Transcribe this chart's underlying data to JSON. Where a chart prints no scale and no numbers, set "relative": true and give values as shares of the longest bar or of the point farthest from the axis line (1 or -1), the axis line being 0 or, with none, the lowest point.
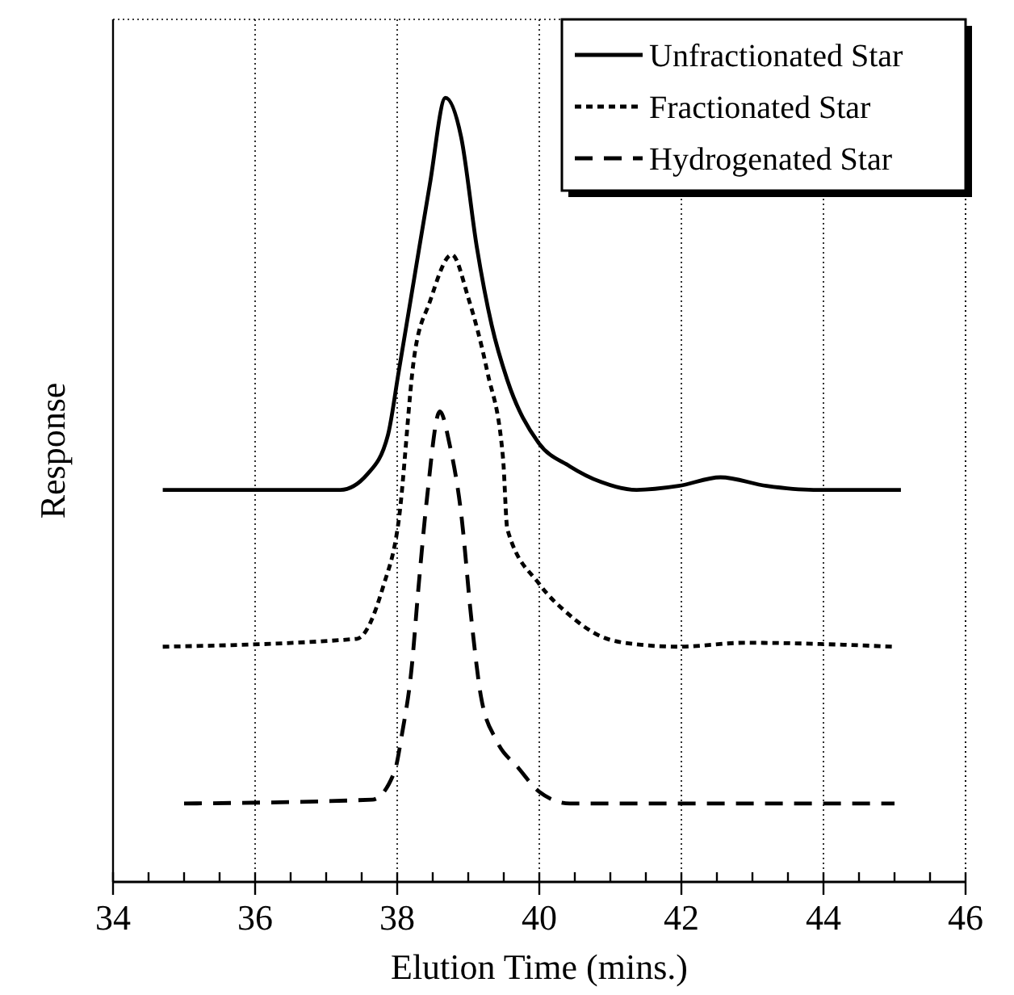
{
  "chart_data": {
    "type": "line",
    "xlabel": "Elution Time (mins.)",
    "ylabel": "Response",
    "relative": true,
    "xlim": [
      34,
      46
    ],
    "xticks": [
      34,
      {
        "value": 34.5,
        "label": null
      },
      {
        "value": 35,
        "label": null
      },
      {
        "value": 35.5,
        "label": null
      },
      36,
      {
        "value": 36.5,
        "label": null
      },
      {
        "value": 37,
        "label": null
      },
      {
        "value": 37.5,
        "label": null
      },
      38,
      {
        "value": 38.5,
        "label": null
      },
      {
        "value": 39,
        "label": null
      },
      {
        "value": 39.5,
        "label": null
      },
      40,
      {
        "value": 40.5,
        "label": null
      },
      {
        "value": 41,
        "label": null
      },
      {
        "value": 41.5,
        "label": null
      },
      42,
      {
        "value": 42.5,
        "label": null
      },
      {
        "value": 43,
        "label": null
      },
      {
        "value": 43.5,
        "label": null
      },
      44,
      {
        "value": 44.5,
        "label": null
      },
      {
        "value": 45,
        "label": null
      },
      {
        "value": 45.5,
        "label": null
      },
      46
    ],
    "grid": "x",
    "legend": "top right",
    "series": [
      {
        "name": "Unfractionated Star",
        "color": "#000000",
        "line_style": "solid",
        "x": [
          34.7,
          37.2,
          37.58,
          37.87,
          38.02,
          38.24,
          38.46,
          38.68,
          38.9,
          39.12,
          39.33,
          39.55,
          39.99,
          40.43,
          40.87,
          41.37,
          41.96,
          42.55,
          43.2,
          43.86,
          45.09
        ],
        "values": [
          0.5,
          0.5,
          0.52,
          0.57,
          0.65,
          0.77,
          0.89,
          1.0,
          0.95,
          0.81,
          0.71,
          0.64,
          0.56,
          0.53,
          0.51,
          0.5,
          0.505,
          0.516,
          0.505,
          0.5,
          0.5
        ]
      },
      {
        "name": "Fractionated Star",
        "color": "#000000",
        "line_style": "dotted",
        "x": [
          34.7,
          37.43,
          37.8,
          38.02,
          38.24,
          38.46,
          38.77,
          39.0,
          39.27,
          39.49,
          39.55,
          40.0,
          40.43,
          40.87,
          41.37,
          41.96,
          42.9,
          45.0
        ],
        "values": [
          0.3,
          0.31,
          0.376,
          0.46,
          0.67,
          0.74,
          0.8,
          0.745,
          0.65,
          0.54,
          0.45,
          0.38,
          0.34,
          0.313,
          0.303,
          0.3,
          0.305,
          0.3
        ]
      },
      {
        "name": "Hydrogenated Star",
        "color": "#000000",
        "line_style": "dashed",
        "x": [
          35.0,
          37.65,
          37.96,
          38.07,
          38.2,
          38.3,
          38.42,
          38.6,
          38.74,
          38.9,
          39.05,
          39.18,
          39.4,
          39.7,
          40.0,
          40.43,
          45.0
        ],
        "values": [
          0.1,
          0.105,
          0.14,
          0.19,
          0.27,
          0.376,
          0.49,
          0.6,
          0.557,
          0.47,
          0.33,
          0.236,
          0.18,
          0.146,
          0.115,
          0.1,
          0.1
        ]
      }
    ]
  }
}
